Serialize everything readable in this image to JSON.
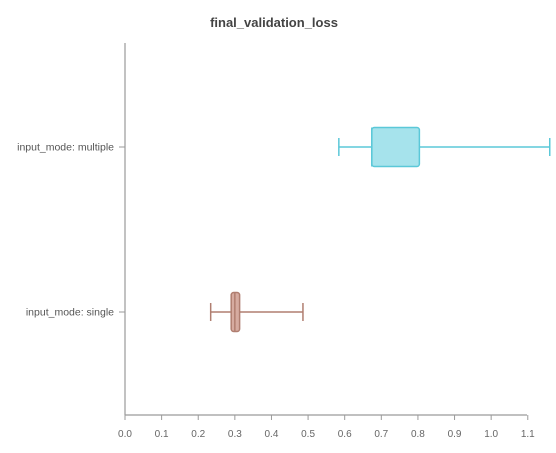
{
  "chart_data": {
    "type": "box",
    "orientation": "horizontal",
    "title": "final_validation_loss",
    "xlabel": "",
    "ylabel": "",
    "xlim": [
      0.0,
      1.117
    ],
    "x_ticks": [
      0.0,
      0.1,
      0.2,
      0.3,
      0.4,
      0.5,
      0.6,
      0.7,
      0.8,
      0.9,
      1.0,
      1.1
    ],
    "x_tick_labels": [
      "0.0",
      "0.1",
      "0.2",
      "0.3",
      "0.4",
      "0.5",
      "0.6",
      "0.7",
      "0.8",
      "0.9",
      "1.0",
      "1.1"
    ],
    "grid": false,
    "categories": [
      "input_mode: multiple",
      "input_mode: single"
    ],
    "boxes": [
      {
        "category": "input_mode: multiple",
        "whisker_low": 0.584,
        "q1": 0.674,
        "median": 0.674,
        "q3": 0.804,
        "whisker_high": 1.16,
        "color": "#5bc8d8",
        "fill": "#a6e3ec"
      },
      {
        "category": "input_mode: single",
        "whisker_low": 0.234,
        "q1": 0.29,
        "median": 0.3,
        "q3": 0.313,
        "whisker_high": 0.486,
        "color": "#b07e70",
        "fill": "#d6aba0"
      }
    ]
  }
}
